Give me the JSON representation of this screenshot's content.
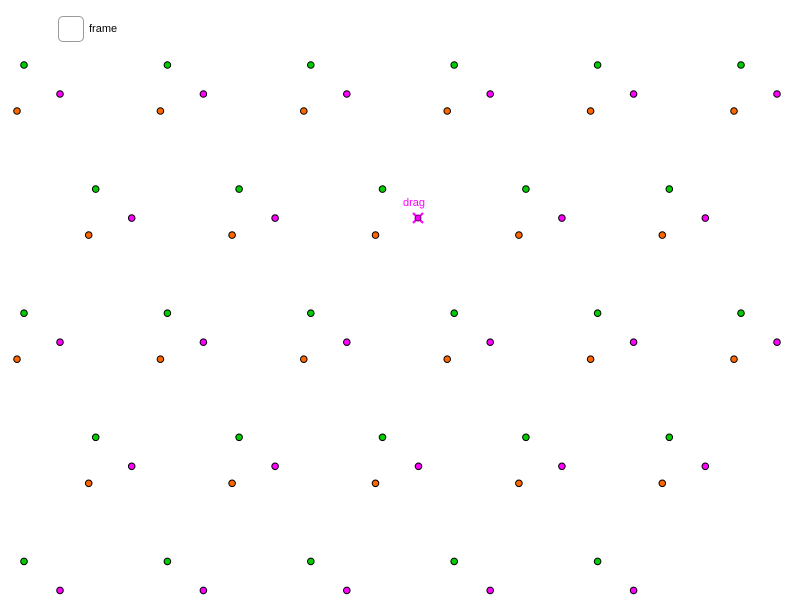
{
  "frame_toggle": {
    "label": "frame",
    "checked": false
  },
  "drag_handle": {
    "label": "drag",
    "color": "#ff00ff"
  },
  "colors": {
    "green": "#00cc00",
    "magenta": "#ff00ff",
    "orange": "#ff6600",
    "outline": "#000000"
  }
}
